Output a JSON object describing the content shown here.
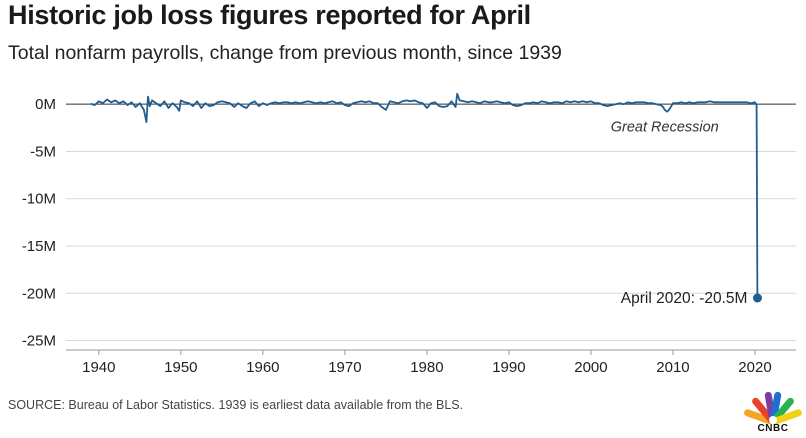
{
  "header": {
    "title": "Historic job loss figures reported for April",
    "subtitle": "Total nonfarm payrolls, change from previous month, since 1939"
  },
  "footer": {
    "source": "SOURCE: Bureau of Labor Statistics. 1939 is earliest data available from the BLS.",
    "logo_text": "CNBC",
    "logo_icon": "peacock-icon"
  },
  "colors": {
    "line": "#1f5d93",
    "gridline": "#d9d9d9",
    "zero_line": "#333333",
    "text": "#222222",
    "logo": [
      "#f5a623",
      "#e8412c",
      "#7b3fa0",
      "#1f6fd1",
      "#2ab24c",
      "#f2d11a"
    ]
  },
  "chart_data": {
    "type": "line",
    "title": "",
    "xlabel": "",
    "ylabel": "",
    "unit": "M",
    "xlim": [
      1936,
      2025
    ],
    "ylim": [
      -26,
      1.5
    ],
    "grid": "horizontal",
    "yticks": [
      {
        "value": 0,
        "label": "0M"
      },
      {
        "value": -5,
        "label": "-5M"
      },
      {
        "value": -10,
        "label": "-10M"
      },
      {
        "value": -15,
        "label": "-15M"
      },
      {
        "value": -20,
        "label": "-20M"
      },
      {
        "value": -25,
        "label": "-25M"
      }
    ],
    "xticks": [
      {
        "value": 1940,
        "label": "1940"
      },
      {
        "value": 1950,
        "label": "1950"
      },
      {
        "value": 1960,
        "label": "1960"
      },
      {
        "value": 1970,
        "label": "1970"
      },
      {
        "value": 1980,
        "label": "1980"
      },
      {
        "value": 1990,
        "label": "1990"
      },
      {
        "value": 2000,
        "label": "2000"
      },
      {
        "value": 2010,
        "label": "2010"
      },
      {
        "value": 2020,
        "label": "2020"
      }
    ],
    "series": [
      {
        "x": [
          1939.0,
          1939.5,
          1940.0,
          1940.5,
          1941.0,
          1941.5,
          1942.0,
          1942.5,
          1943.0,
          1943.5,
          1944.0,
          1944.5,
          1945.0,
          1945.5,
          1945.8,
          1946.0,
          1946.2,
          1946.5,
          1947.0,
          1947.5,
          1948.0,
          1948.5,
          1949.0,
          1949.5,
          1949.8,
          1950.0,
          1950.5,
          1951.0,
          1951.5,
          1952.0,
          1952.5,
          1953.0,
          1953.5,
          1954.0,
          1954.5,
          1955.0,
          1955.5,
          1956.0,
          1956.5,
          1957.0,
          1957.5,
          1958.0,
          1958.5,
          1959.0,
          1959.5,
          1960.0,
          1960.5,
          1961.0,
          1961.5,
          1962.0,
          1962.5,
          1963.0,
          1963.5,
          1964.0,
          1964.5,
          1965.0,
          1965.5,
          1966.0,
          1966.5,
          1967.0,
          1967.5,
          1968.0,
          1968.5,
          1969.0,
          1969.5,
          1970.0,
          1970.5,
          1971.0,
          1971.5,
          1972.0,
          1972.5,
          1973.0,
          1973.5,
          1974.0,
          1974.5,
          1975.0,
          1975.5,
          1976.0,
          1976.5,
          1977.0,
          1977.5,
          1978.0,
          1978.5,
          1979.0,
          1979.5,
          1980.0,
          1980.5,
          1981.0,
          1981.5,
          1982.0,
          1982.5,
          1983.0,
          1983.5,
          1983.7,
          1984.0,
          1984.5,
          1985.0,
          1985.5,
          1986.0,
          1986.5,
          1987.0,
          1987.5,
          1988.0,
          1988.5,
          1989.0,
          1989.5,
          1990.0,
          1990.5,
          1991.0,
          1991.5,
          1992.0,
          1992.5,
          1993.0,
          1993.5,
          1994.0,
          1994.5,
          1995.0,
          1995.5,
          1996.0,
          1996.5,
          1997.0,
          1997.5,
          1998.0,
          1998.5,
          1999.0,
          1999.5,
          2000.0,
          2000.5,
          2001.0,
          2001.5,
          2002.0,
          2002.5,
          2003.0,
          2003.5,
          2004.0,
          2004.5,
          2005.0,
          2005.5,
          2006.0,
          2006.5,
          2007.0,
          2007.5,
          2008.0,
          2008.5,
          2008.8,
          2009.0,
          2009.3,
          2009.6,
          2010.0,
          2010.5,
          2011.0,
          2011.5,
          2012.0,
          2012.5,
          2013.0,
          2013.5,
          2014.0,
          2014.5,
          2015.0,
          2015.5,
          2016.0,
          2016.5,
          2017.0,
          2017.5,
          2018.0,
          2018.5,
          2019.0,
          2019.5,
          2020.0,
          2020.2,
          2020.3
        ],
        "values": [
          0.05,
          -0.1,
          0.3,
          0.1,
          0.5,
          0.2,
          0.4,
          0.1,
          0.3,
          -0.1,
          0.2,
          -0.3,
          0.1,
          -0.6,
          -1.9,
          0.8,
          -0.2,
          0.4,
          0.1,
          -0.2,
          0.3,
          -0.4,
          0.1,
          -0.3,
          -0.7,
          0.4,
          0.2,
          0.1,
          -0.2,
          0.3,
          -0.4,
          0.1,
          -0.2,
          -0.1,
          0.2,
          0.3,
          0.2,
          0.1,
          -0.3,
          0.1,
          -0.2,
          -0.4,
          0.1,
          0.3,
          -0.2,
          0.1,
          -0.1,
          0.1,
          0.2,
          0.1,
          0.2,
          0.2,
          0.1,
          0.2,
          0.1,
          0.2,
          0.3,
          0.2,
          0.1,
          0.2,
          0.1,
          0.2,
          0.3,
          0.1,
          0.2,
          -0.1,
          -0.2,
          0.1,
          0.2,
          0.3,
          0.2,
          0.3,
          0.1,
          0.1,
          -0.3,
          -0.6,
          0.3,
          0.2,
          0.1,
          0.3,
          0.4,
          0.3,
          0.4,
          0.2,
          0.1,
          -0.4,
          0.1,
          0.2,
          -0.2,
          -0.3,
          -0.2,
          0.3,
          -0.3,
          1.1,
          0.4,
          0.3,
          0.2,
          0.3,
          0.2,
          0.1,
          0.3,
          0.2,
          0.2,
          0.3,
          0.2,
          0.1,
          0.2,
          -0.1,
          -0.2,
          -0.1,
          0.1,
          0.1,
          0.2,
          0.1,
          0.3,
          0.2,
          0.1,
          0.2,
          0.2,
          0.1,
          0.3,
          0.2,
          0.3,
          0.2,
          0.3,
          0.2,
          0.3,
          0.1,
          0.1,
          -0.1,
          -0.2,
          -0.1,
          0.0,
          0.1,
          0.0,
          0.2,
          0.1,
          0.2,
          0.2,
          0.2,
          0.1,
          0.1,
          0.0,
          -0.1,
          -0.3,
          -0.6,
          -0.8,
          -0.5,
          0.1,
          0.1,
          0.2,
          0.1,
          0.2,
          0.1,
          0.2,
          0.2,
          0.2,
          0.3,
          0.2,
          0.2,
          0.2,
          0.2,
          0.2,
          0.2,
          0.2,
          0.2,
          0.2,
          0.1,
          0.2,
          -0.1,
          -20.5
        ]
      }
    ],
    "annotations": [
      {
        "text": "Great Recession",
        "x": 2009,
        "y": -2.9,
        "style": "italic"
      },
      {
        "text": "April 2020: -20.5M",
        "x": 2020.3,
        "y": -20.5,
        "anchor": "point"
      }
    ]
  }
}
